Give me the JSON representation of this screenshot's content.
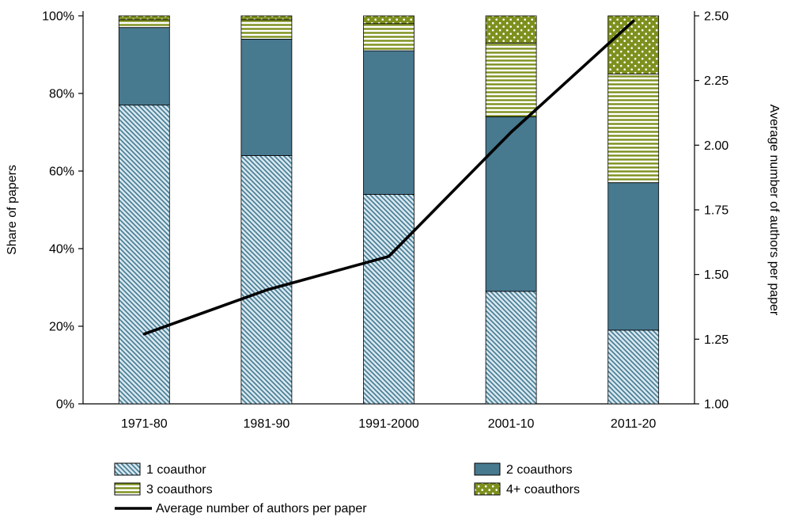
{
  "chart_data": {
    "type": "bar",
    "stacked": true,
    "title": "",
    "grid": false,
    "legend_position": "bottom-left",
    "categories": [
      "1971-80",
      "1981-90",
      "1991-2000",
      "2001-10",
      "2011-20"
    ],
    "series": [
      {
        "name": "1 coauthor",
        "values": [
          77,
          64,
          54,
          29,
          19
        ],
        "style": "diagonal-hatch",
        "color": "#4a7f96",
        "bg": "#d9e8f0"
      },
      {
        "name": "2 coauthors",
        "values": [
          20,
          30,
          37,
          45,
          38
        ],
        "style": "solid",
        "color": "#47798f"
      },
      {
        "name": "3 coauthors",
        "values": [
          2,
          5,
          7,
          19,
          28
        ],
        "style": "horizontal-stripes",
        "color": "#7d901d",
        "bg": "#ffffff"
      },
      {
        "name": "4+ coauthors",
        "values": [
          1,
          1,
          2,
          7,
          15
        ],
        "style": "dots",
        "color": "#7d901d",
        "dot": "#ffffff"
      }
    ],
    "line_series": {
      "name": "Average number of authors per paper",
      "values": [
        1.27,
        1.44,
        1.57,
        2.05,
        2.48
      ],
      "color": "#000000",
      "axis": "right"
    },
    "left_axis": {
      "label": "Share of papers",
      "min": 0,
      "max": 100,
      "tick_values": [
        0,
        20,
        40,
        60,
        80,
        100
      ],
      "ticks": [
        "0%",
        "20%",
        "40%",
        "60%",
        "80%",
        "100%"
      ]
    },
    "right_axis": {
      "label": "Average number of authors per paper",
      "min": 1.0,
      "max": 2.5,
      "tick_values": [
        1.0,
        1.25,
        1.5,
        1.75,
        2.0,
        2.25,
        2.5
      ],
      "ticks": [
        "1.00",
        "1.25",
        "1.50",
        "1.75",
        "2.00",
        "2.25",
        "2.50"
      ]
    }
  }
}
